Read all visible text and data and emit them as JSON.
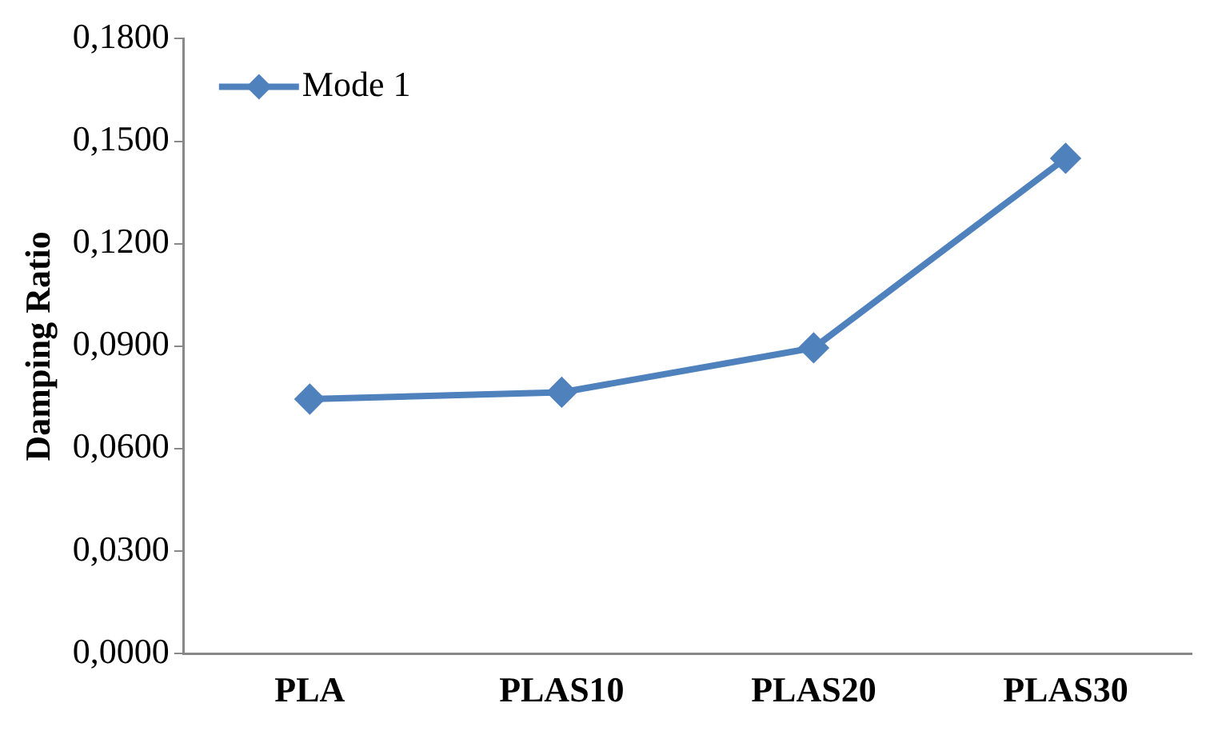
{
  "chart_data": {
    "type": "line",
    "ylabel": "Damping Ratio",
    "categories": [
      "PLA",
      "PLAS10",
      "PLAS20",
      "PLAS30"
    ],
    "series": [
      {
        "name": "Mode 1",
        "color": "#4f81bd",
        "values": [
          0.0745,
          0.0765,
          0.0895,
          0.145
        ]
      }
    ],
    "ylim": [
      0,
      0.18
    ],
    "yticks": [
      {
        "value": 0,
        "label": "0,0000"
      },
      {
        "value": 0.03,
        "label": "0,0300"
      },
      {
        "value": 0.06,
        "label": "0,0600"
      },
      {
        "value": 0.09,
        "label": "0,0900"
      },
      {
        "value": 0.12,
        "label": "0,1200"
      },
      {
        "value": 0.15,
        "label": "0,1500"
      },
      {
        "value": 0.18,
        "label": "0,1800"
      }
    ],
    "grid": false,
    "legend": "top left",
    "marker": "diamond",
    "line_style": "solid"
  }
}
